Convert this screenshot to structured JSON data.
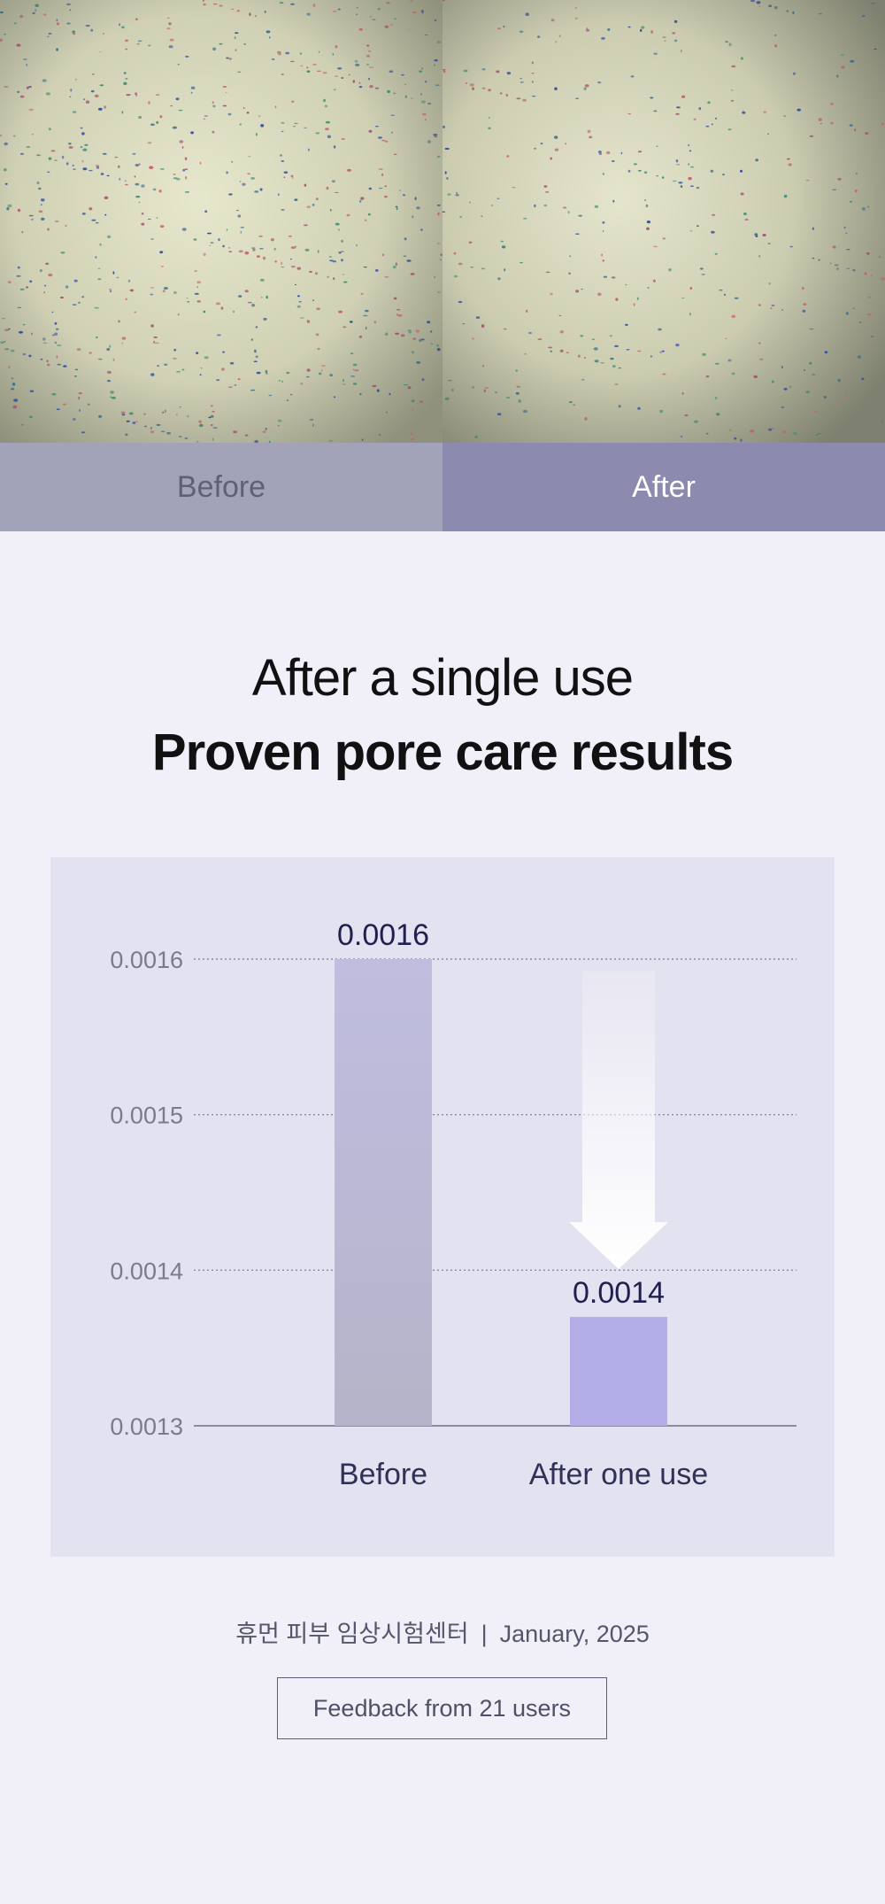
{
  "comparison": {
    "before_label": "Before",
    "after_label": "After"
  },
  "heading": {
    "line1": "After a single use",
    "line2": "Proven pore care results"
  },
  "chart_data": {
    "type": "bar",
    "categories": [
      "Before",
      "After one use"
    ],
    "values": [
      0.0016,
      0.00137
    ],
    "value_labels": [
      "0.0016",
      "0.0014"
    ],
    "yticks": [
      "0.0013",
      "0.0014",
      "0.0015",
      "0.0016"
    ],
    "ylim": [
      0.0013,
      0.0016
    ],
    "grid": true,
    "colors": {
      "before_bar_top": "#c0bde0",
      "before_bar_bottom": "#b5b4c8",
      "after_bar": "#b3aee8",
      "value_label": "#1f2050",
      "category_label": "#2f3158",
      "tick_label": "#7a7b8e"
    }
  },
  "footer": {
    "source": "휴먼 피부 임상시험센터",
    "separator": "|",
    "date": "January, 2025",
    "feedback_button": "Feedback from 21 users"
  }
}
